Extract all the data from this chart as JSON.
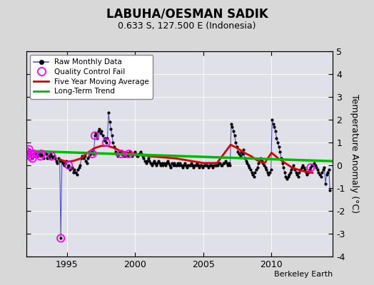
{
  "title": "LABUHA/OESMAN SADIK",
  "subtitle": "0.633 S, 127.500 E (Indonesia)",
  "ylabel": "Temperature Anomaly (°C)",
  "credit": "Berkeley Earth",
  "ylim": [
    -4,
    5
  ],
  "yticks": [
    -4,
    -3,
    -2,
    -1,
    0,
    1,
    2,
    3,
    4,
    5
  ],
  "xlim": [
    1992.0,
    2014.5
  ],
  "xticks": [
    1995,
    2000,
    2005,
    2010
  ],
  "bg_color": "#d8d8d8",
  "plot_bg_color": "#e0e0e8",
  "raw_color": "#5555cc",
  "raw_marker_color": "#000000",
  "ma_color": "#dd0000",
  "trend_color": "#00bb00",
  "qc_color": "#ff00ff",
  "raw_data_years": [
    1992.04,
    1992.12,
    1992.21,
    1992.29,
    1992.37,
    1992.46,
    1992.54,
    1992.62,
    1992.71,
    1992.79,
    1992.87,
    1992.96,
    1993.04,
    1993.12,
    1993.21,
    1993.29,
    1993.37,
    1993.46,
    1993.54,
    1993.62,
    1993.71,
    1993.79,
    1993.87,
    1993.96,
    1994.04,
    1994.12,
    1994.21,
    1994.29,
    1994.37,
    1994.46,
    1994.54,
    1994.62,
    1994.71,
    1994.79,
    1994.87,
    1994.96,
    1995.04,
    1995.12,
    1995.21,
    1995.29,
    1995.37,
    1995.46,
    1995.54,
    1995.62,
    1995.71,
    1995.79,
    1995.87,
    1995.96,
    1996.04,
    1996.12,
    1996.21,
    1996.29,
    1996.37,
    1996.46,
    1996.54,
    1996.62,
    1996.71,
    1996.79,
    1996.87,
    1996.96,
    1997.04,
    1997.12,
    1997.21,
    1997.29,
    1997.37,
    1997.46,
    1997.54,
    1997.62,
    1997.71,
    1997.79,
    1997.87,
    1997.96,
    1998.04,
    1998.12,
    1998.21,
    1998.29,
    1998.37,
    1998.46,
    1998.54,
    1998.62,
    1998.71,
    1998.79,
    1998.87,
    1998.96,
    1999.04,
    1999.12,
    1999.21,
    1999.29,
    1999.37,
    1999.46,
    1999.54,
    1999.62,
    1999.71,
    1999.79,
    1999.87,
    1999.96,
    2000.04,
    2000.12,
    2000.21,
    2000.29,
    2000.37,
    2000.46,
    2000.54,
    2000.62,
    2000.71,
    2000.79,
    2000.87,
    2000.96,
    2001.04,
    2001.12,
    2001.21,
    2001.29,
    2001.37,
    2001.46,
    2001.54,
    2001.62,
    2001.71,
    2001.79,
    2001.87,
    2001.96,
    2002.04,
    2002.12,
    2002.21,
    2002.29,
    2002.37,
    2002.46,
    2002.54,
    2002.62,
    2002.71,
    2002.79,
    2002.87,
    2002.96,
    2003.04,
    2003.12,
    2003.21,
    2003.29,
    2003.37,
    2003.46,
    2003.54,
    2003.62,
    2003.71,
    2003.79,
    2003.87,
    2003.96,
    2004.04,
    2004.12,
    2004.21,
    2004.29,
    2004.37,
    2004.46,
    2004.54,
    2004.62,
    2004.71,
    2004.79,
    2004.87,
    2004.96,
    2005.04,
    2005.12,
    2005.21,
    2005.29,
    2005.37,
    2005.46,
    2005.54,
    2005.62,
    2005.71,
    2005.79,
    2005.87,
    2005.96,
    2006.04,
    2006.12,
    2006.21,
    2006.29,
    2006.37,
    2006.46,
    2006.54,
    2006.62,
    2006.71,
    2006.79,
    2006.87,
    2006.96,
    2007.04,
    2007.12,
    2007.21,
    2007.29,
    2007.37,
    2007.46,
    2007.54,
    2007.62,
    2007.71,
    2007.79,
    2007.87,
    2007.96,
    2008.04,
    2008.12,
    2008.21,
    2008.29,
    2008.37,
    2008.46,
    2008.54,
    2008.62,
    2008.71,
    2008.79,
    2008.87,
    2008.96,
    2009.04,
    2009.12,
    2009.21,
    2009.29,
    2009.37,
    2009.46,
    2009.54,
    2009.62,
    2009.71,
    2009.79,
    2009.87,
    2009.96,
    2010.04,
    2010.12,
    2010.21,
    2010.29,
    2010.37,
    2010.46,
    2010.54,
    2010.62,
    2010.71,
    2010.79,
    2010.87,
    2010.96,
    2011.04,
    2011.12,
    2011.21,
    2011.29,
    2011.37,
    2011.46,
    2011.54,
    2011.62,
    2011.71,
    2011.79,
    2011.87,
    2011.96,
    2012.04,
    2012.12,
    2012.21,
    2012.29,
    2012.37,
    2012.46,
    2012.54,
    2012.62,
    2012.71,
    2012.79,
    2012.87,
    2012.96,
    2013.04,
    2013.12,
    2013.21,
    2013.29,
    2013.37,
    2013.46,
    2013.54,
    2013.62,
    2013.71,
    2013.79,
    2013.87,
    2013.96,
    2014.04,
    2014.12,
    2014.21,
    2014.29
  ],
  "raw_data_values": [
    0.6,
    0.5,
    0.7,
    0.4,
    0.5,
    0.3,
    0.5,
    0.4,
    0.5,
    0.6,
    0.4,
    0.5,
    0.4,
    0.5,
    0.4,
    0.3,
    0.6,
    0.5,
    0.3,
    0.4,
    0.3,
    0.5,
    0.4,
    0.3,
    0.4,
    0.3,
    0.2,
    0.1,
    0.3,
    0.2,
    -3.2,
    0.2,
    0.1,
    0.0,
    0.1,
    0.2,
    -0.1,
    0.0,
    -0.2,
    -0.1,
    -0.1,
    -0.3,
    -0.2,
    -0.3,
    -0.4,
    -0.2,
    -0.1,
    0.0,
    0.3,
    0.4,
    0.3,
    0.4,
    0.2,
    0.1,
    0.3,
    0.4,
    0.5,
    0.6,
    0.7,
    0.5,
    1.3,
    1.4,
    1.2,
    1.5,
    1.6,
    1.4,
    1.5,
    1.3,
    1.1,
    1.2,
    1.0,
    1.2,
    2.3,
    1.9,
    1.6,
    1.3,
    1.0,
    0.8,
    0.6,
    0.5,
    0.4,
    0.5,
    0.6,
    0.5,
    0.5,
    0.4,
    0.5,
    0.4,
    0.5,
    0.4,
    0.5,
    0.6,
    0.5,
    0.4,
    0.5,
    0.6,
    0.5,
    0.4,
    0.4,
    0.5,
    0.6,
    0.5,
    0.4,
    0.3,
    0.2,
    0.1,
    0.2,
    0.3,
    0.2,
    0.1,
    0.0,
    0.1,
    0.2,
    0.1,
    0.0,
    0.1,
    0.2,
    0.1,
    0.0,
    0.1,
    0.0,
    0.1,
    0.0,
    0.1,
    0.2,
    0.1,
    0.0,
    -0.1,
    0.1,
    0.0,
    0.1,
    0.0,
    0.0,
    0.1,
    0.0,
    0.1,
    0.0,
    -0.1,
    0.0,
    0.1,
    0.0,
    -0.1,
    0.0,
    0.0,
    0.0,
    0.1,
    0.0,
    -0.1,
    0.0,
    0.0,
    0.1,
    0.0,
    -0.1,
    0.0,
    0.0,
    -0.1,
    0.0,
    0.0,
    0.0,
    0.0,
    -0.1,
    0.0,
    0.0,
    0.0,
    -0.1,
    0.0,
    0.0,
    0.0,
    0.0,
    0.1,
    0.1,
    0.0,
    0.0,
    0.1,
    0.1,
    0.2,
    0.1,
    0.0,
    0.1,
    0.0,
    1.8,
    1.7,
    1.5,
    1.3,
    1.0,
    0.8,
    0.6,
    0.5,
    0.4,
    0.6,
    0.5,
    0.7,
    0.3,
    0.2,
    0.1,
    0.0,
    -0.1,
    -0.2,
    -0.3,
    -0.4,
    -0.5,
    -0.3,
    -0.2,
    -0.1,
    0.1,
    0.2,
    0.3,
    0.2,
    0.1,
    0.0,
    -0.1,
    -0.2,
    -0.3,
    -0.4,
    -0.3,
    -0.2,
    2.0,
    1.8,
    1.7,
    1.5,
    1.2,
    1.0,
    0.8,
    0.6,
    0.3,
    0.1,
    -0.1,
    -0.3,
    -0.5,
    -0.6,
    -0.5,
    -0.4,
    -0.3,
    -0.2,
    -0.1,
    0.0,
    -0.2,
    -0.3,
    -0.4,
    -0.5,
    -0.3,
    -0.2,
    -0.1,
    0.0,
    -0.1,
    -0.2,
    -0.3,
    -0.4,
    -0.3,
    -0.2,
    -0.1,
    0.0,
    0.0,
    0.1,
    0.0,
    -0.1,
    -0.2,
    -0.3,
    -0.4,
    -0.5,
    -0.3,
    -0.2,
    -0.1,
    -0.8,
    -0.4,
    -0.3,
    -0.2,
    -1.1
  ],
  "qc_years": [
    1992.04,
    1992.12,
    1992.21,
    1992.29,
    1992.37,
    1992.46,
    1992.54,
    1993.04,
    1993.12,
    1993.87,
    1994.54,
    1995.12,
    1996.87,
    1997.04,
    1997.87,
    1998.96,
    1999.54,
    2012.87
  ],
  "qc_values": [
    0.6,
    0.5,
    0.7,
    0.4,
    0.5,
    0.3,
    0.5,
    0.4,
    0.5,
    0.4,
    -3.2,
    0.0,
    0.5,
    1.3,
    1.0,
    0.5,
    0.5,
    -0.1
  ],
  "ma_years": [
    1994.5,
    1995.0,
    1995.5,
    1996.0,
    1996.5,
    1997.0,
    1997.5,
    1998.0,
    1998.5,
    1999.0,
    1999.5,
    2000.0,
    2000.5,
    2001.0,
    2002.0,
    2003.0,
    2004.0,
    2005.0,
    2006.0,
    2007.0,
    2007.5,
    2008.0,
    2008.5,
    2009.0,
    2009.5,
    2010.0,
    2010.5,
    2011.0,
    2011.5,
    2012.0,
    2012.5,
    2013.0
  ],
  "ma_values": [
    0.25,
    0.15,
    0.2,
    0.3,
    0.55,
    0.75,
    0.85,
    0.85,
    0.75,
    0.6,
    0.55,
    0.5,
    0.45,
    0.4,
    0.35,
    0.3,
    0.2,
    0.1,
    0.1,
    0.9,
    0.75,
    0.55,
    0.4,
    0.2,
    0.1,
    0.55,
    0.3,
    0.1,
    -0.1,
    -0.2,
    -0.28,
    -0.33
  ],
  "trend_years": [
    1992.0,
    2014.5
  ],
  "trend_values": [
    0.63,
    0.18
  ]
}
